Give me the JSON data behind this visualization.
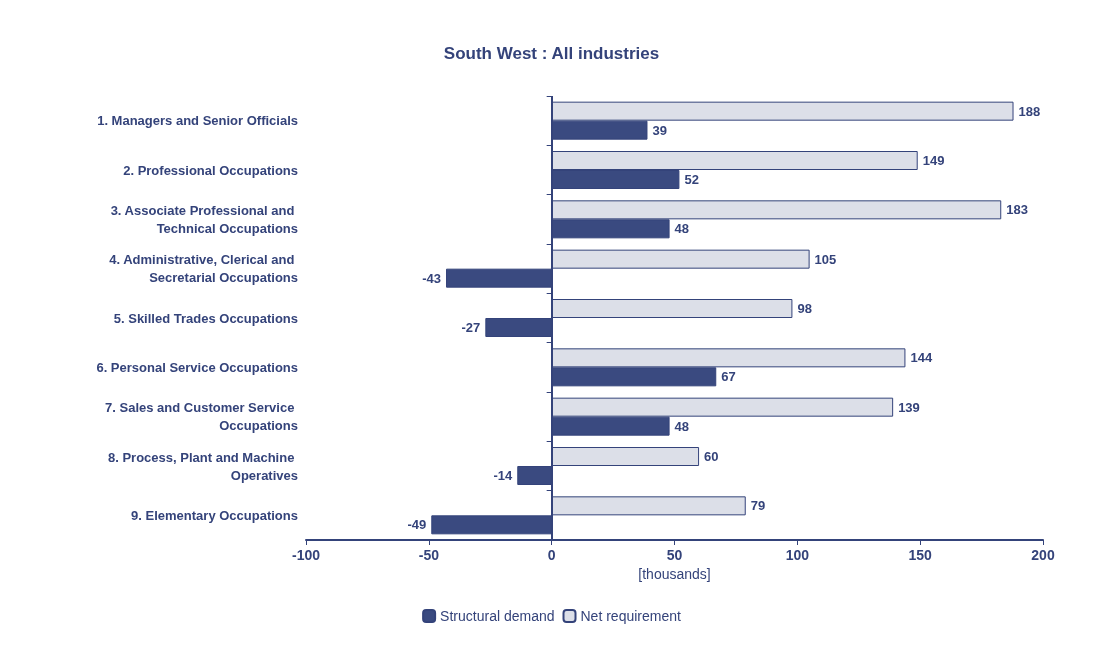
{
  "chart_data": {
    "type": "bar",
    "orientation": "horizontal",
    "title": "South West : All industries",
    "xlabel": "[thousands]",
    "categories": [
      "1. Managers and Senior Officials",
      "2. Professional Occupations",
      "3. Associate Professional and Technical Occupations",
      "4. Administrative, Clerical and Secretarial Occupations",
      "5. Skilled Trades Occupations",
      "6. Personal Service Occupations",
      "7. Sales and Customer Service Occupations",
      "8. Process, Plant and Machine Operatives",
      "9. Elementary Occupations"
    ],
    "series": [
      {
        "name": "Structural demand",
        "color": "#3a4a80",
        "values": [
          39,
          52,
          48,
          -43,
          -27,
          67,
          48,
          -14,
          -49
        ]
      },
      {
        "name": "Net requirement",
        "color": "#dcdfe8",
        "values": [
          188,
          149,
          183,
          105,
          98,
          144,
          139,
          60,
          79
        ]
      }
    ],
    "xlim": [
      -100,
      200
    ],
    "xticks": [
      -100,
      -50,
      0,
      50,
      100,
      150,
      200
    ],
    "ref_lines": [
      {
        "axis": "x",
        "value": 0,
        "color": "#34437a"
      }
    ],
    "data_labels": true,
    "grid": false,
    "legend": "bottom"
  }
}
